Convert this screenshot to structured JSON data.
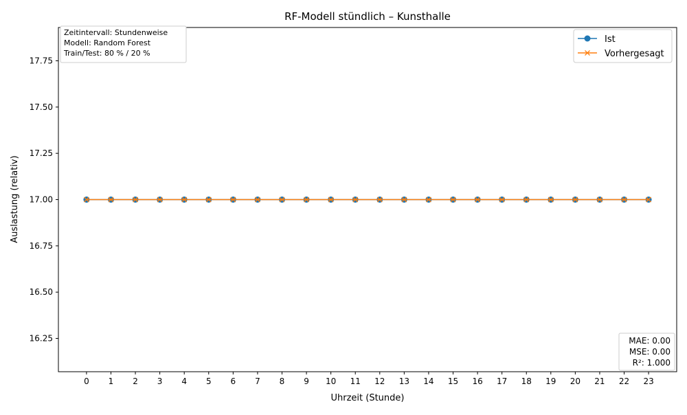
{
  "chart_data": {
    "type": "line",
    "title": "RF-Modell stündlich – Kunsthalle",
    "xlabel": "Uhrzeit (Stunde)",
    "ylabel": "Auslastung (relativ)",
    "x": [
      0,
      1,
      2,
      3,
      4,
      5,
      6,
      7,
      8,
      9,
      10,
      11,
      12,
      13,
      14,
      15,
      16,
      17,
      18,
      19,
      20,
      21,
      22,
      23
    ],
    "xticks": [
      "0",
      "1",
      "2",
      "3",
      "4",
      "5",
      "6",
      "7",
      "8",
      "9",
      "10",
      "11",
      "12",
      "13",
      "14",
      "15",
      "16",
      "17",
      "18",
      "19",
      "20",
      "21",
      "22",
      "23"
    ],
    "xlim": [
      -1.15,
      24.15
    ],
    "ylim": [
      16.07,
      17.93
    ],
    "yticks": [
      "16.25",
      "16.50",
      "16.75",
      "17.00",
      "17.25",
      "17.50",
      "17.75"
    ],
    "grid": false,
    "legend_position": "top-right",
    "series": [
      {
        "name": "Ist",
        "marker": "circle",
        "color": "#1f77b4",
        "values": [
          17,
          17,
          17,
          17,
          17,
          17,
          17,
          17,
          17,
          17,
          17,
          17,
          17,
          17,
          17,
          17,
          17,
          17,
          17,
          17,
          17,
          17,
          17,
          17
        ]
      },
      {
        "name": "Vorhergesagt",
        "marker": "x",
        "color": "#ff7f0e",
        "values": [
          17,
          17,
          17,
          17,
          17,
          17,
          17,
          17,
          17,
          17,
          17,
          17,
          17,
          17,
          17,
          17,
          17,
          17,
          17,
          17,
          17,
          17,
          17,
          17
        ]
      }
    ],
    "info_box": {
      "lines": [
        "Zeitintervall: Stundenweise",
        "Modell: Random Forest",
        "Train/Test: 80 % / 20 %"
      ],
      "position": "top-left"
    },
    "metrics_box": {
      "lines": [
        "MAE: 0.00",
        "MSE: 0.00",
        "R²: 1.000"
      ],
      "position": "bottom-right"
    }
  }
}
